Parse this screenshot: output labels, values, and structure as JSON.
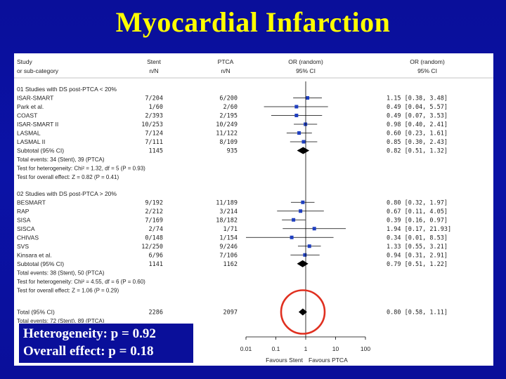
{
  "slide": {
    "title": "Myocardial Infarction",
    "callout_line1": "Heterogeneity: p = 0.92",
    "callout_line2": "Overall effect: p = 0.18"
  },
  "colors": {
    "background": "#0a0f9a",
    "title": "#ffff00",
    "marker": "#1f3fbf",
    "highlight_circle": "#e03020"
  },
  "chart_data": {
    "type": "forest",
    "scale": "log",
    "xlim": [
      0.01,
      100
    ],
    "ticks": [
      "0.01",
      "0.1",
      "1",
      "10",
      "100"
    ],
    "tick_values": [
      0.01,
      0.1,
      1,
      10,
      100
    ],
    "favours_left": "Favours Stent",
    "favours_right": "Favours PTCA",
    "headers": {
      "study": [
        "Study",
        "or sub-category"
      ],
      "stent": [
        "Stent",
        "n/N"
      ],
      "ptca": [
        "PTCA",
        "n/N"
      ],
      "or_plot": [
        "OR (random)",
        "95% CI"
      ],
      "or_text": [
        "OR (random)",
        "95% CI"
      ]
    },
    "groups": [
      {
        "label": "01 Studies with DS post-PTCA < 20%",
        "studies": [
          {
            "name": "ISAR-SMART",
            "stent": "7/204",
            "ptca": "6/200",
            "or": 1.15,
            "lo": 0.38,
            "hi": 3.48,
            "ci_text": "1.15 [0.38, 3.48]"
          },
          {
            "name": "Park et al.",
            "stent": "1/60",
            "ptca": "2/60",
            "or": 0.49,
            "lo": 0.04,
            "hi": 5.57,
            "ci_text": "0.49 [0.04, 5.57]"
          },
          {
            "name": "COAST",
            "stent": "2/393",
            "ptca": "2/195",
            "or": 0.49,
            "lo": 0.07,
            "hi": 3.53,
            "ci_text": "0.49 [0.07, 3.53]"
          },
          {
            "name": "ISAR-SMART II",
            "stent": "10/253",
            "ptca": "10/249",
            "or": 0.98,
            "lo": 0.4,
            "hi": 2.41,
            "ci_text": "0.98 [0.40, 2.41]"
          },
          {
            "name": "LASMAL",
            "stent": "7/124",
            "ptca": "11/122",
            "or": 0.6,
            "lo": 0.23,
            "hi": 1.61,
            "ci_text": "0.60 [0.23, 1.61]"
          },
          {
            "name": "LASMAL II",
            "stent": "7/111",
            "ptca": "8/109",
            "or": 0.85,
            "lo": 0.3,
            "hi": 2.43,
            "ci_text": "0.85 [0.30, 2.43]"
          }
        ],
        "subtotal": {
          "name": "Subtotal (95% CI)",
          "stent": "1145",
          "ptca": "935",
          "or": 0.82,
          "lo": 0.51,
          "hi": 1.32,
          "ci_text": "0.82 [0.51, 1.32]"
        },
        "notes": [
          "Total events: 34 (Stent), 39 (PTCA)",
          "Test for heterogeneity: Chi² = 1.32, df = 5 (P = 0.93)",
          "Test for overall effect: Z = 0.82 (P = 0.41)"
        ]
      },
      {
        "label": "02 Studies with DS post-PTCA > 20%",
        "studies": [
          {
            "name": "BESMART",
            "stent": "9/192",
            "ptca": "11/189",
            "or": 0.8,
            "lo": 0.32,
            "hi": 1.97,
            "ci_text": "0.80 [0.32, 1.97]"
          },
          {
            "name": "RAP",
            "stent": "2/212",
            "ptca": "3/214",
            "or": 0.67,
            "lo": 0.11,
            "hi": 4.05,
            "ci_text": "0.67 [0.11, 4.05]"
          },
          {
            "name": "SISA",
            "stent": "7/169",
            "ptca": "18/182",
            "or": 0.39,
            "lo": 0.16,
            "hi": 0.97,
            "ci_text": "0.39 [0.16, 0.97]"
          },
          {
            "name": "SISCA",
            "stent": "2/74",
            "ptca": "1/71",
            "or": 1.94,
            "lo": 0.17,
            "hi": 21.93,
            "ci_text": "1.94 [0.17, 21.93]"
          },
          {
            "name": "CHIVAS",
            "stent": "0/148",
            "ptca": "1/154",
            "or": 0.34,
            "lo": 0.01,
            "hi": 8.53,
            "ci_text": "0.34 [0.01, 8.53]"
          },
          {
            "name": "SVS",
            "stent": "12/250",
            "ptca": "9/246",
            "or": 1.33,
            "lo": 0.55,
            "hi": 3.21,
            "ci_text": "1.33 [0.55, 3.21]"
          },
          {
            "name": "Kinsara et al.",
            "stent": "6/96",
            "ptca": "7/106",
            "or": 0.94,
            "lo": 0.31,
            "hi": 2.91,
            "ci_text": "0.94 [0.31, 2.91]"
          }
        ],
        "subtotal": {
          "name": "Subtotal (95% CI)",
          "stent": "1141",
          "ptca": "1162",
          "or": 0.79,
          "lo": 0.51,
          "hi": 1.22,
          "ci_text": "0.79 [0.51, 1.22]"
        },
        "notes": [
          "Total events: 38 (Stent), 50 (PTCA)",
          "Test for heterogeneity: Chi² = 4.55, df = 6 (P = 0.60)",
          "Test for overall effect: Z = 1.06 (P = 0.29)"
        ]
      }
    ],
    "total": {
      "name": "Total (95% CI)",
      "stent": "2286",
      "ptca": "2097",
      "or": 0.8,
      "lo": 0.58,
      "hi": 1.11,
      "ci_text": "0.80 [0.58, 1.11]"
    },
    "total_notes": [
      "Total events: 72 (Stent), 89 (PTCA)"
    ]
  }
}
